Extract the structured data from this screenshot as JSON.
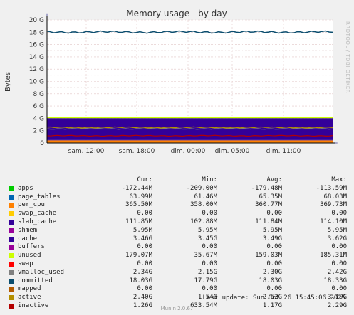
{
  "chart_data": {
    "type": "area",
    "title": "Memory usage - by day",
    "ylabel": "Bytes",
    "side_label": "RRDTOOL / TOBI OETIKER",
    "ylim": [
      0,
      20
    ],
    "y_unit": "G",
    "y_ticks": [
      "0",
      "2 G",
      "4 G",
      "6 G",
      "8 G",
      "10 G",
      "12 G",
      "14 G",
      "16 G",
      "18 G",
      "20 G"
    ],
    "x_ticks": [
      "sam. 12:00",
      "sam. 18:00",
      "dim. 00:00",
      "dim. 05:00",
      "dim. 11:00"
    ],
    "series": [
      {
        "name": "apps",
        "color": "#00cc00",
        "values": [
          0,
          0
        ]
      },
      {
        "name": "page_tables",
        "color": "#0066b3",
        "values": [
          0.064,
          0.064
        ]
      },
      {
        "name": "per_cpu",
        "color": "#ff8000",
        "values": [
          0.36,
          0.36
        ]
      },
      {
        "name": "swap_cache",
        "color": "#ffcc00",
        "values": [
          0,
          0
        ]
      },
      {
        "name": "slab_cache",
        "color": "#330099",
        "values": [
          0.11,
          0.11
        ]
      },
      {
        "name": "shmem",
        "color": "#990099",
        "values": [
          0.006,
          0.006
        ]
      },
      {
        "name": "cache",
        "color": "#330099",
        "values": [
          3.49,
          3.46
        ]
      },
      {
        "name": "buffers",
        "color": "#990099",
        "values": [
          0,
          0
        ]
      },
      {
        "name": "unused",
        "color": "#ccff00",
        "values": [
          0.16,
          0.18
        ]
      },
      {
        "name": "swap",
        "color": "#ff0000",
        "values": [
          0,
          0
        ]
      },
      {
        "name": "vmalloc_used",
        "color": "#808080",
        "values": [
          2.3,
          2.34
        ]
      },
      {
        "name": "committed",
        "color": "#0b4d6e",
        "values": [
          18.03,
          18.03
        ]
      },
      {
        "name": "mapped",
        "color": "#b35a00",
        "values": [
          0,
          0
        ]
      },
      {
        "name": "active",
        "color": "#b38f00",
        "values": [
          2.52,
          2.4
        ]
      },
      {
        "name": "inactive",
        "color": "#b30000",
        "values": [
          1.17,
          1.26
        ]
      }
    ]
  },
  "legend": {
    "headers": [
      "Cur:",
      "Min:",
      "Avg:",
      "Max:"
    ],
    "rows": [
      {
        "name": "apps",
        "color": "#00cc00",
        "cur": "-172.44M",
        "min": "-209.00M",
        "avg": "-179.48M",
        "max": "-113.59M"
      },
      {
        "name": "page_tables",
        "color": "#0066b3",
        "cur": "63.99M",
        "min": "61.46M",
        "avg": "65.35M",
        "max": "68.03M"
      },
      {
        "name": "per_cpu",
        "color": "#ff8000",
        "cur": "365.50M",
        "min": "358.00M",
        "avg": "360.77M",
        "max": "369.73M"
      },
      {
        "name": "swap_cache",
        "color": "#ffcc00",
        "cur": "0.00",
        "min": "0.00",
        "avg": "0.00",
        "max": "0.00"
      },
      {
        "name": "slab_cache",
        "color": "#330099",
        "cur": "111.85M",
        "min": "102.88M",
        "avg": "111.84M",
        "max": "114.10M"
      },
      {
        "name": "shmem",
        "color": "#990099",
        "cur": "5.95M",
        "min": "5.95M",
        "avg": "5.95M",
        "max": "5.95M"
      },
      {
        "name": "cache",
        "color": "#330099",
        "cur": "3.46G",
        "min": "3.45G",
        "avg": "3.49G",
        "max": "3.62G"
      },
      {
        "name": "buffers",
        "color": "#990099",
        "cur": "0.00",
        "min": "0.00",
        "avg": "0.00",
        "max": "0.00"
      },
      {
        "name": "unused",
        "color": "#ccff00",
        "cur": "179.07M",
        "min": "35.67M",
        "avg": "159.03M",
        "max": "185.31M"
      },
      {
        "name": "swap",
        "color": "#ff0000",
        "cur": "0.00",
        "min": "0.00",
        "avg": "0.00",
        "max": "0.00"
      },
      {
        "name": "vmalloc_used",
        "color": "#808080",
        "cur": "2.34G",
        "min": "2.15G",
        "avg": "2.30G",
        "max": "2.42G"
      },
      {
        "name": "committed",
        "color": "#0b4d6e",
        "cur": "18.03G",
        "min": "17.79G",
        "avg": "18.03G",
        "max": "18.33G"
      },
      {
        "name": "mapped",
        "color": "#b35a00",
        "cur": "0.00",
        "min": "0.00",
        "avg": "0.00",
        "max": "0.00"
      },
      {
        "name": "active",
        "color": "#b38f00",
        "cur": "2.40G",
        "min": "1.54G",
        "avg": "2.52G",
        "max": "3.19G"
      },
      {
        "name": "inactive",
        "color": "#b30000",
        "cur": "1.26G",
        "min": "633.54M",
        "avg": "1.17G",
        "max": "2.29G"
      }
    ]
  },
  "footer": {
    "last_update": "Last update: Sun Oct 26 15:45:06 2025",
    "version": "Munin 2.0.67"
  }
}
